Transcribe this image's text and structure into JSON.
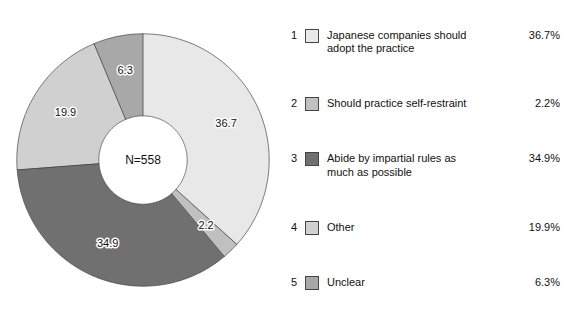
{
  "chart_data": {
    "type": "pie",
    "categories": [
      "Japanese companies should\nadopt the practice",
      "Should practice self-restraint",
      "Abide by impartial rules as\nmuch as possible",
      "Other",
      "Unclear"
    ],
    "values": [
      36.7,
      2.2,
      34.9,
      19.9,
      6.3
    ],
    "value_labels": [
      "36.7%",
      "2.2%",
      "34.9%",
      "19.9%",
      "6.3%"
    ],
    "colors": [
      "#e8e8e8",
      "#c0c0c0",
      "#707070",
      "#d0d0d0",
      "#a8a8a8"
    ],
    "data_labels": true,
    "legend": "right",
    "legend_numbers": [
      1,
      2,
      3,
      4,
      5
    ],
    "annotations": [
      "N=558"
    ]
  }
}
